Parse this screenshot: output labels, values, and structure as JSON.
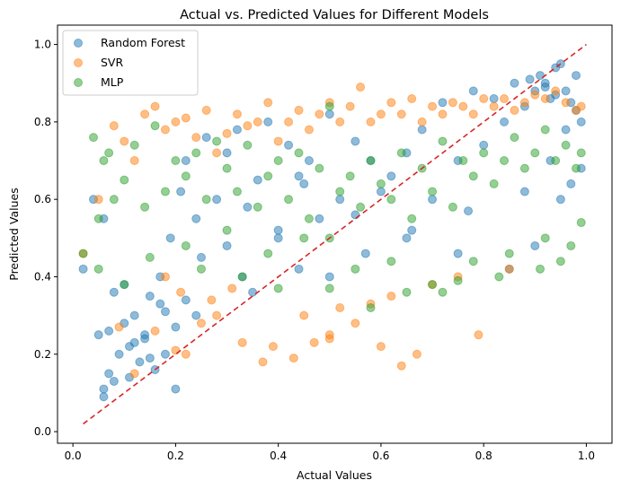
{
  "chart_data": {
    "type": "scatter",
    "title": "Actual vs. Predicted Values for Different Models",
    "xlabel": "Actual Values",
    "ylabel": "Predicted Values",
    "xlim": [
      -0.03,
      1.05
    ],
    "ylim": [
      -0.03,
      1.05
    ],
    "xticks": [
      "0.0",
      "0.2",
      "0.4",
      "0.6",
      "0.8",
      "1.0"
    ],
    "yticks": [
      "0.0",
      "0.2",
      "0.4",
      "0.6",
      "0.8",
      "1.0"
    ],
    "grid": false,
    "legend_position": "top-left",
    "reference_line": {
      "style": "dashed",
      "color": "#d62728",
      "x": [
        0.02,
        1.0
      ],
      "y": [
        0.02,
        1.0
      ]
    },
    "series": [
      {
        "name": "Random Forest",
        "color": "#1f77b4",
        "alpha": 0.5,
        "x": [
          0.02,
          0.05,
          0.06,
          0.06,
          0.07,
          0.08,
          0.09,
          0.1,
          0.11,
          0.12,
          0.13,
          0.14,
          0.15,
          0.16,
          0.17,
          0.18,
          0.19,
          0.2,
          0.21,
          0.22,
          0.24,
          0.26,
          0.28,
          0.3,
          0.32,
          0.34,
          0.36,
          0.38,
          0.4,
          0.42,
          0.44,
          0.46,
          0.48,
          0.5,
          0.5,
          0.52,
          0.55,
          0.58,
          0.6,
          0.62,
          0.65,
          0.68,
          0.7,
          0.72,
          0.75,
          0.78,
          0.8,
          0.82,
          0.84,
          0.86,
          0.88,
          0.9,
          0.91,
          0.92,
          0.93,
          0.94,
          0.95,
          0.96,
          0.97,
          0.98,
          0.99,
          0.99,
          0.12,
          0.15,
          0.18,
          0.1,
          0.07,
          0.2,
          0.22,
          0.25,
          0.3,
          0.35,
          0.4,
          0.45,
          0.55,
          0.65,
          0.75,
          0.85,
          0.9,
          0.95,
          0.97,
          0.08,
          0.11,
          0.14,
          0.06,
          0.04,
          0.17,
          0.24,
          0.33,
          0.44,
          0.57,
          0.66,
          0.77,
          0.88,
          0.93,
          0.96,
          0.92,
          0.89,
          0.94,
          0.98
        ],
        "y": [
          0.42,
          0.25,
          0.11,
          0.09,
          0.15,
          0.13,
          0.2,
          0.28,
          0.22,
          0.3,
          0.18,
          0.25,
          0.35,
          0.16,
          0.4,
          0.2,
          0.5,
          0.11,
          0.62,
          0.7,
          0.55,
          0.76,
          0.6,
          0.72,
          0.78,
          0.58,
          0.65,
          0.8,
          0.5,
          0.74,
          0.66,
          0.7,
          0.55,
          0.82,
          0.4,
          0.6,
          0.75,
          0.7,
          0.62,
          0.66,
          0.72,
          0.78,
          0.6,
          0.85,
          0.7,
          0.88,
          0.74,
          0.86,
          0.8,
          0.9,
          0.84,
          0.88,
          0.92,
          0.9,
          0.86,
          0.94,
          0.95,
          0.88,
          0.85,
          0.92,
          0.8,
          0.68,
          0.23,
          0.19,
          0.31,
          0.38,
          0.26,
          0.27,
          0.34,
          0.45,
          0.48,
          0.36,
          0.52,
          0.64,
          0.56,
          0.5,
          0.46,
          0.42,
          0.48,
          0.6,
          0.64,
          0.36,
          0.14,
          0.24,
          0.55,
          0.6,
          0.33,
          0.3,
          0.4,
          0.42,
          0.46,
          0.52,
          0.57,
          0.62,
          0.7,
          0.78,
          0.89,
          0.91,
          0.87,
          0.83
        ]
      },
      {
        "name": "SVR",
        "color": "#ff7f0e",
        "alpha": 0.5,
        "x": [
          0.02,
          0.05,
          0.08,
          0.1,
          0.12,
          0.14,
          0.16,
          0.18,
          0.2,
          0.22,
          0.24,
          0.26,
          0.28,
          0.3,
          0.32,
          0.34,
          0.36,
          0.38,
          0.4,
          0.42,
          0.44,
          0.46,
          0.48,
          0.5,
          0.5,
          0.52,
          0.54,
          0.56,
          0.58,
          0.6,
          0.62,
          0.64,
          0.66,
          0.68,
          0.7,
          0.72,
          0.74,
          0.76,
          0.78,
          0.8,
          0.82,
          0.84,
          0.86,
          0.88,
          0.9,
          0.92,
          0.94,
          0.96,
          0.98,
          0.99,
          0.16,
          0.2,
          0.22,
          0.25,
          0.33,
          0.37,
          0.39,
          0.43,
          0.47,
          0.5,
          0.58,
          0.6,
          0.64,
          0.67,
          0.79,
          0.18,
          0.21,
          0.27,
          0.31,
          0.45,
          0.52,
          0.55,
          0.62,
          0.7,
          0.75,
          0.85,
          0.09,
          0.12,
          0.28
        ],
        "y": [
          0.46,
          0.6,
          0.79,
          0.75,
          0.7,
          0.82,
          0.84,
          0.78,
          0.8,
          0.81,
          0.76,
          0.83,
          0.72,
          0.77,
          0.82,
          0.79,
          0.8,
          0.85,
          0.75,
          0.8,
          0.83,
          0.78,
          0.82,
          0.85,
          0.24,
          0.8,
          0.84,
          0.89,
          0.8,
          0.82,
          0.85,
          0.82,
          0.86,
          0.8,
          0.84,
          0.82,
          0.85,
          0.84,
          0.82,
          0.86,
          0.84,
          0.86,
          0.83,
          0.85,
          0.87,
          0.86,
          0.88,
          0.85,
          0.83,
          0.84,
          0.26,
          0.21,
          0.2,
          0.28,
          0.23,
          0.18,
          0.22,
          0.19,
          0.23,
          0.25,
          0.33,
          0.22,
          0.17,
          0.2,
          0.25,
          0.4,
          0.36,
          0.34,
          0.37,
          0.3,
          0.32,
          0.28,
          0.35,
          0.38,
          0.4,
          0.42,
          0.27,
          0.15,
          0.3
        ]
      },
      {
        "name": "MLP",
        "color": "#2ca02c",
        "alpha": 0.5,
        "x": [
          0.02,
          0.04,
          0.05,
          0.06,
          0.07,
          0.08,
          0.1,
          0.12,
          0.14,
          0.16,
          0.18,
          0.2,
          0.22,
          0.24,
          0.26,
          0.28,
          0.3,
          0.32,
          0.34,
          0.36,
          0.38,
          0.4,
          0.42,
          0.44,
          0.46,
          0.48,
          0.5,
          0.5,
          0.5,
          0.52,
          0.54,
          0.56,
          0.58,
          0.6,
          0.62,
          0.64,
          0.66,
          0.68,
          0.7,
          0.72,
          0.74,
          0.76,
          0.78,
          0.8,
          0.82,
          0.84,
          0.86,
          0.88,
          0.9,
          0.92,
          0.94,
          0.96,
          0.98,
          0.99,
          0.99,
          0.05,
          0.1,
          0.15,
          0.22,
          0.3,
          0.38,
          0.45,
          0.55,
          0.62,
          0.7,
          0.78,
          0.85,
          0.92,
          0.97,
          0.58,
          0.65,
          0.72,
          0.75,
          0.83,
          0.91,
          0.95,
          0.4,
          0.33,
          0.25
        ],
        "y": [
          0.46,
          0.76,
          0.55,
          0.7,
          0.72,
          0.6,
          0.65,
          0.74,
          0.58,
          0.79,
          0.62,
          0.7,
          0.66,
          0.72,
          0.6,
          0.75,
          0.68,
          0.62,
          0.74,
          0.58,
          0.66,
          0.7,
          0.6,
          0.72,
          0.55,
          0.68,
          0.84,
          0.37,
          0.5,
          0.62,
          0.66,
          0.58,
          0.7,
          0.64,
          0.6,
          0.72,
          0.55,
          0.68,
          0.62,
          0.75,
          0.58,
          0.7,
          0.66,
          0.72,
          0.64,
          0.7,
          0.76,
          0.68,
          0.72,
          0.78,
          0.7,
          0.74,
          0.68,
          0.72,
          0.54,
          0.42,
          0.38,
          0.45,
          0.48,
          0.52,
          0.46,
          0.5,
          0.42,
          0.44,
          0.38,
          0.44,
          0.46,
          0.5,
          0.48,
          0.32,
          0.36,
          0.36,
          0.39,
          0.4,
          0.42,
          0.44,
          0.37,
          0.4,
          0.42
        ]
      }
    ]
  }
}
